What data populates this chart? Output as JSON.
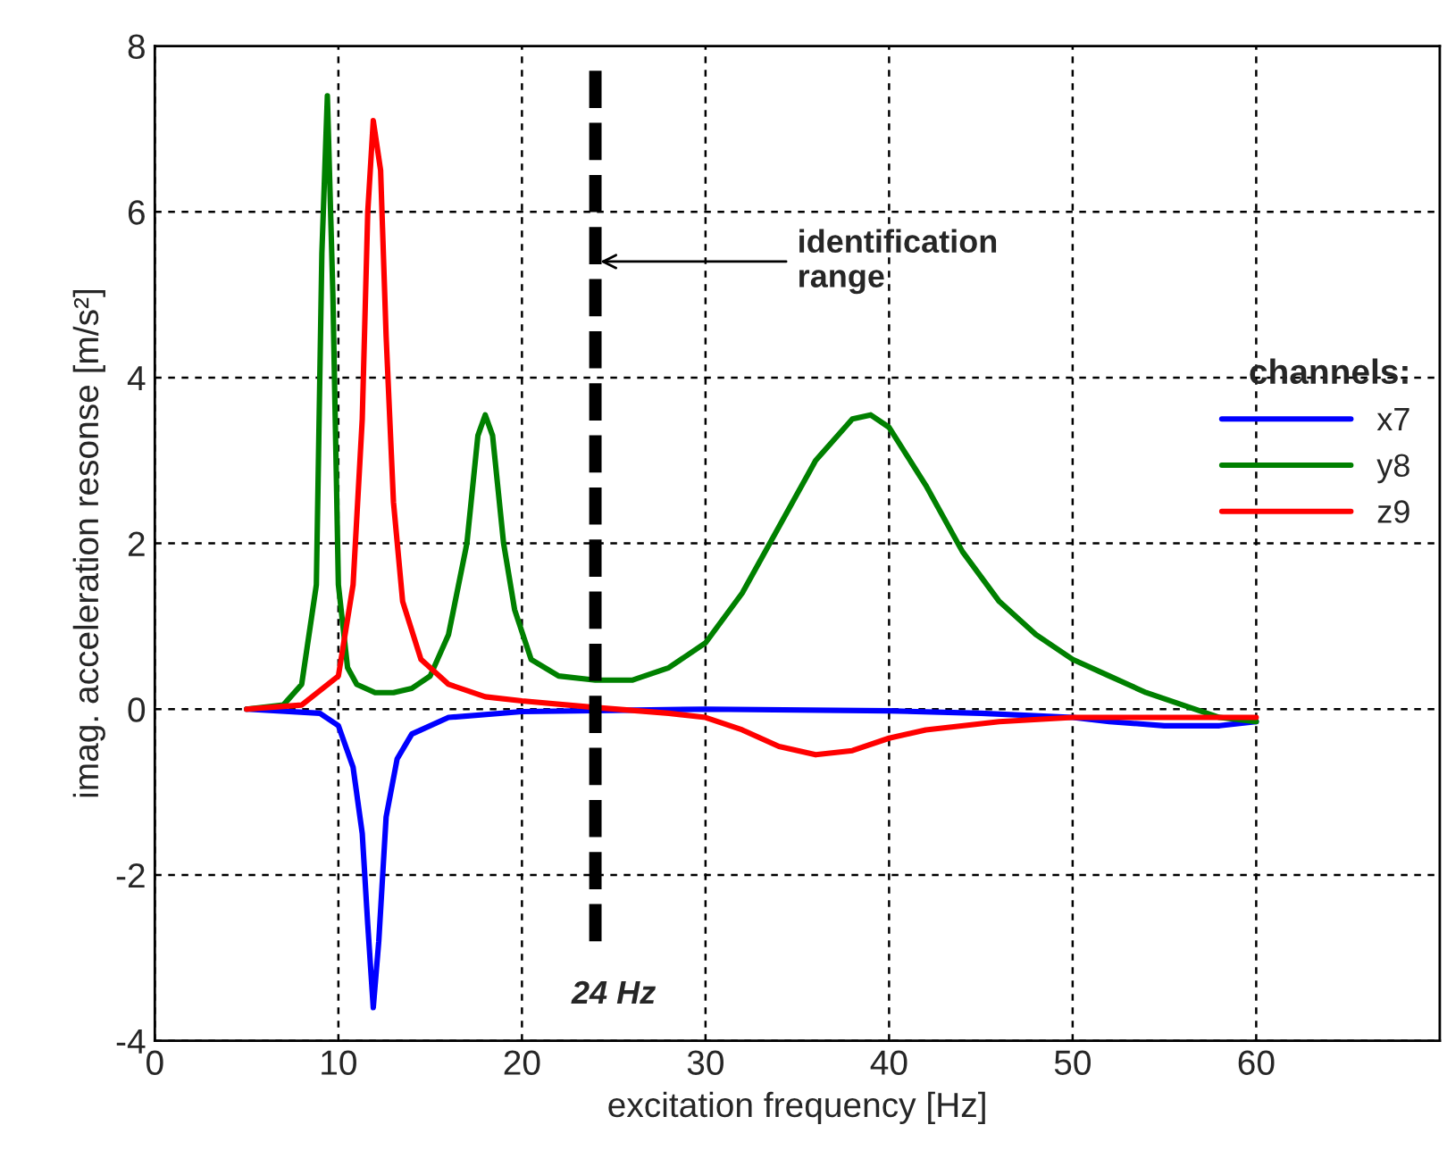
{
  "chart_data": {
    "type": "line",
    "xlabel": "excitation frequency [Hz]",
    "ylabel": "imag. acceleration resonse [m/s²]",
    "legend_title": "channels:",
    "legend": "right",
    "grid": true,
    "xlim": [
      0,
      70
    ],
    "xticks": [
      0,
      10,
      20,
      30,
      40,
      50,
      60
    ],
    "ylim": [
      -4,
      8
    ],
    "yticks": [
      -4,
      -2,
      0,
      2,
      4,
      6,
      8
    ],
    "ref_lines": [
      {
        "axis": "x",
        "value": 24,
        "label": "24 Hz",
        "color": "#000000",
        "line_style": "dashed"
      }
    ],
    "annotations": [
      {
        "text": "identification\nrange",
        "x": 24,
        "y": 5.4
      }
    ],
    "series": [
      {
        "name": "x7",
        "color": "#0000ff",
        "x": [
          5,
          9,
          10,
          10.8,
          11.3,
          11.6,
          11.9,
          12.2,
          12.6,
          13.2,
          14,
          16,
          20,
          30,
          40,
          45,
          50,
          52,
          55,
          58,
          60
        ],
        "values": [
          0,
          -0.05,
          -0.2,
          -0.7,
          -1.5,
          -2.6,
          -3.6,
          -2.8,
          -1.3,
          -0.6,
          -0.3,
          -0.1,
          -0.03,
          0,
          -0.02,
          -0.05,
          -0.1,
          -0.15,
          -0.2,
          -0.2,
          -0.15
        ]
      },
      {
        "name": "y8",
        "color": "#008000",
        "x": [
          5,
          7,
          8,
          8.8,
          9.1,
          9.4,
          9.7,
          10,
          10.5,
          11,
          12,
          13,
          14,
          15,
          16,
          17,
          17.6,
          18,
          18.4,
          19,
          19.6,
          20.5,
          22,
          24,
          26,
          28,
          30,
          32,
          34,
          36,
          38,
          39,
          40,
          42,
          44,
          46,
          48,
          50,
          52,
          54,
          56,
          58,
          60
        ],
        "values": [
          0,
          0.05,
          0.3,
          1.5,
          5.5,
          7.4,
          5.0,
          1.5,
          0.5,
          0.3,
          0.2,
          0.2,
          0.25,
          0.4,
          0.9,
          2.0,
          3.3,
          3.55,
          3.3,
          2.0,
          1.2,
          0.6,
          0.4,
          0.35,
          0.35,
          0.5,
          0.8,
          1.4,
          2.2,
          3.0,
          3.5,
          3.55,
          3.4,
          2.7,
          1.9,
          1.3,
          0.9,
          0.6,
          0.4,
          0.2,
          0.05,
          -0.1,
          -0.15
        ]
      },
      {
        "name": "z9",
        "color": "#ff0000",
        "x": [
          5,
          8,
          10,
          10.8,
          11.3,
          11.6,
          11.9,
          12.3,
          12.6,
          13,
          13.5,
          14.5,
          16,
          18,
          20,
          24,
          28,
          30,
          32,
          34,
          36,
          38,
          40,
          42,
          46,
          50,
          55,
          60
        ],
        "values": [
          0,
          0.05,
          0.4,
          1.5,
          3.5,
          6.0,
          7.1,
          6.5,
          4.5,
          2.5,
          1.3,
          0.6,
          0.3,
          0.15,
          0.1,
          0.02,
          -0.05,
          -0.1,
          -0.25,
          -0.45,
          -0.55,
          -0.5,
          -0.35,
          -0.25,
          -0.15,
          -0.1,
          -0.1,
          -0.1
        ]
      }
    ]
  }
}
